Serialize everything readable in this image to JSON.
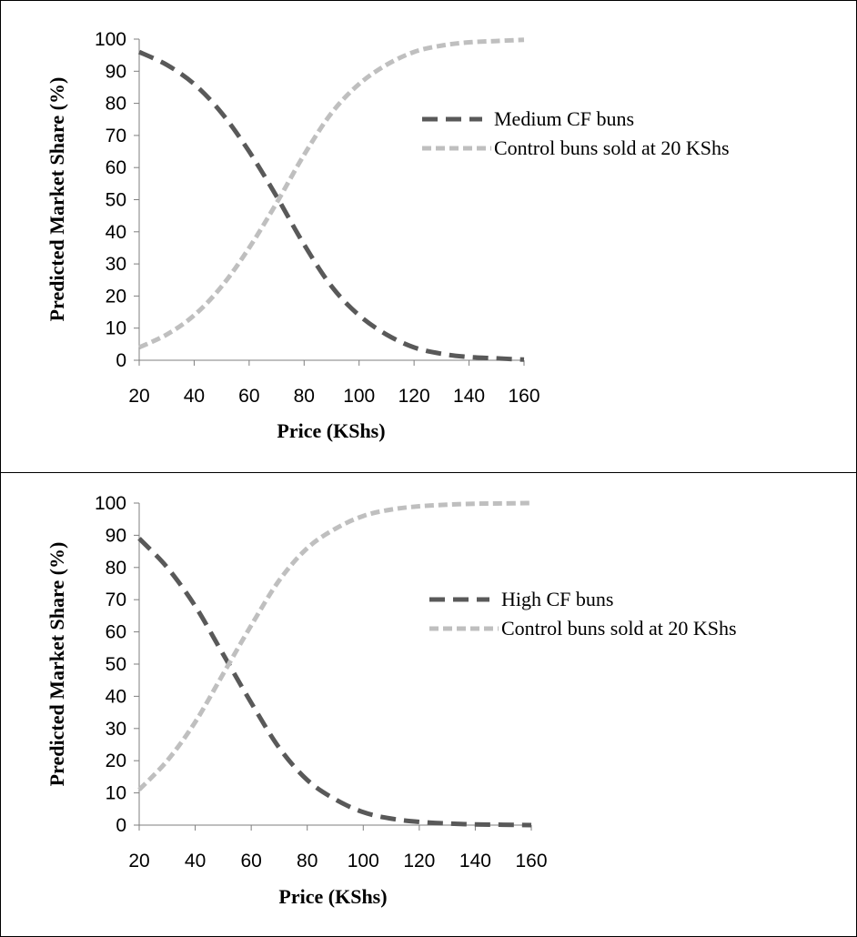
{
  "chart_data": [
    {
      "type": "line",
      "xlabel": "Price (KShs)",
      "ylabel": "Predicted Market Share (%)",
      "xlim": [
        20,
        160
      ],
      "ylim": [
        0,
        100
      ],
      "xticks": [
        "20",
        "40",
        "60",
        "80",
        "100",
        "120",
        "140",
        "160"
      ],
      "yticks": [
        "0",
        "10",
        "20",
        "30",
        "40",
        "50",
        "60",
        "70",
        "80",
        "90",
        "100"
      ],
      "grid": false,
      "legend_position": "top-right",
      "x": [
        20,
        30,
        40,
        50,
        60,
        70,
        80,
        90,
        100,
        110,
        120,
        130,
        140,
        150,
        160
      ],
      "series": [
        {
          "name": "Medium CF buns",
          "color": "#595959",
          "dash": "long-dash",
          "values": [
            96,
            92,
            86,
            77,
            65,
            51,
            36,
            23,
            14,
            8,
            4,
            2,
            1,
            0.6,
            0.2
          ]
        },
        {
          "name": "Control buns sold at 20 KShs",
          "color": "#bfbfbf",
          "dash": "short-dash",
          "values": [
            4,
            8,
            14,
            23,
            35,
            49,
            64,
            77,
            86,
            92,
            96,
            98,
            99,
            99.4,
            99.8
          ]
        }
      ]
    },
    {
      "type": "line",
      "xlabel": "Price (KShs)",
      "ylabel": "Predicted Market Share (%)",
      "xlim": [
        20,
        160
      ],
      "ylim": [
        0,
        100
      ],
      "xticks": [
        "20",
        "40",
        "60",
        "80",
        "100",
        "120",
        "140",
        "160"
      ],
      "yticks": [
        "0",
        "10",
        "20",
        "30",
        "40",
        "50",
        "60",
        "70",
        "80",
        "90",
        "100"
      ],
      "grid": false,
      "legend_position": "top-right",
      "x": [
        20,
        30,
        40,
        50,
        60,
        70,
        80,
        90,
        100,
        110,
        120,
        130,
        140,
        150,
        160
      ],
      "series": [
        {
          "name": "High CF buns",
          "color": "#595959",
          "dash": "long-dash",
          "values": [
            89,
            80,
            68,
            53,
            38,
            24,
            14,
            8,
            4,
            2,
            1,
            0.5,
            0.2,
            0.1,
            0
          ]
        },
        {
          "name": "Control buns sold at 20 KShs",
          "color": "#bfbfbf",
          "dash": "short-dash",
          "values": [
            11,
            20,
            32,
            47,
            62,
            76,
            86,
            92,
            96,
            98,
            99,
            99.5,
            99.8,
            99.9,
            100
          ]
        }
      ]
    }
  ]
}
